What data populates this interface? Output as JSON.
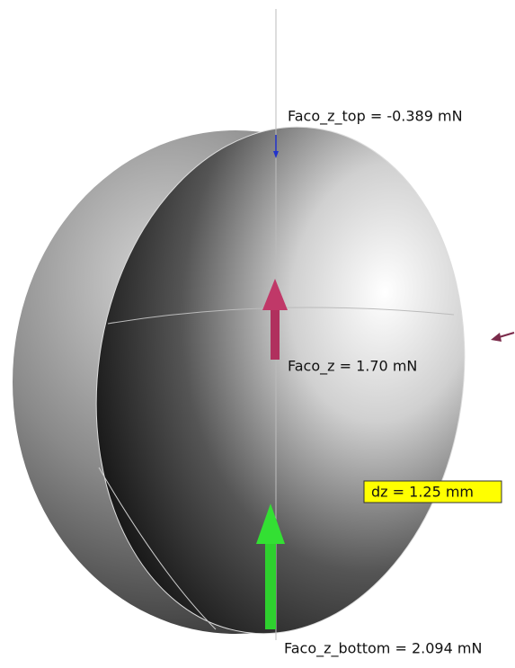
{
  "labels": {
    "top_force": "Faco_z_top = -0.389 mN",
    "net_force": "Faco_z = 1.70 mN",
    "displacement": "dz = 1.25 mm",
    "bottom_force": "Faco_z_bottom = 2.094 mN"
  }
}
